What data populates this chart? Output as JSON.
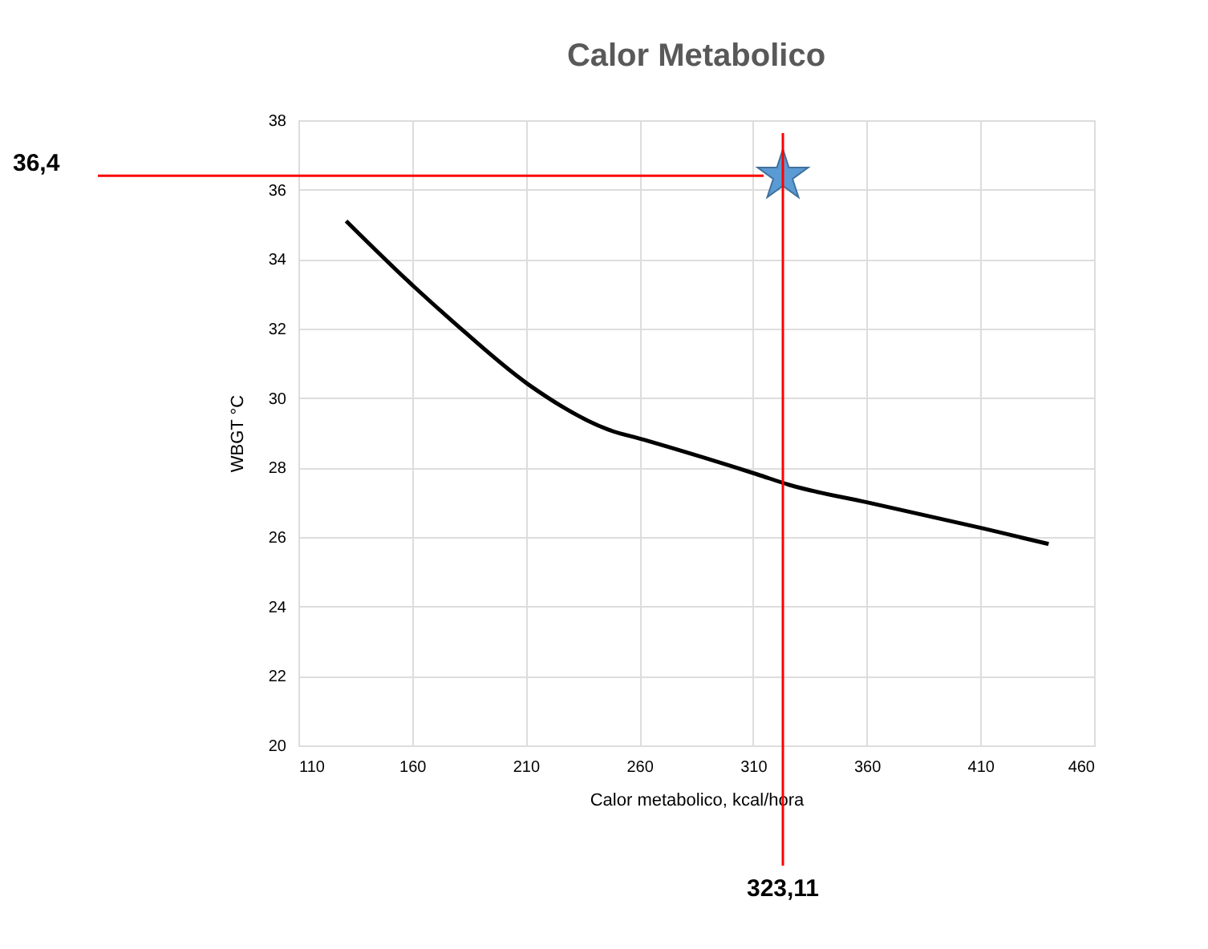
{
  "chart_data": {
    "type": "line",
    "title": "Calor Metabolico",
    "xlabel": "Calor metabolico, kcal/hora",
    "ylabel": "WBGT °C",
    "x": [
      131,
      161,
      178,
      211,
      246,
      262,
      312,
      326,
      360,
      411,
      440
    ],
    "series": [
      {
        "color": "#000000",
        "line_style": "solid",
        "values": [
          35.1,
          33.2,
          32.2,
          30.4,
          29.1,
          28.8,
          27.8,
          27.5,
          27.0,
          26.25,
          25.8
        ]
      },
      {
        "type": "scatter",
        "color": "#5b9bd5",
        "marker": "star",
        "x": [
          323.11
        ],
        "values": [
          36.4
        ]
      }
    ],
    "xlim": [
      110,
      460
    ],
    "xticks": [
      110,
      160,
      210,
      260,
      310,
      360,
      410,
      460
    ],
    "ylim": [
      20,
      38
    ],
    "yticks": [
      20,
      22,
      24,
      26,
      28,
      30,
      32,
      34,
      36,
      38
    ],
    "grid": true,
    "ref_lines": [
      {
        "axis": "y",
        "value": 36.4,
        "label": "36,4",
        "color": "#ff0000"
      },
      {
        "axis": "x",
        "value": 323.11,
        "label": "323,11",
        "color": "#ff0000"
      }
    ]
  }
}
